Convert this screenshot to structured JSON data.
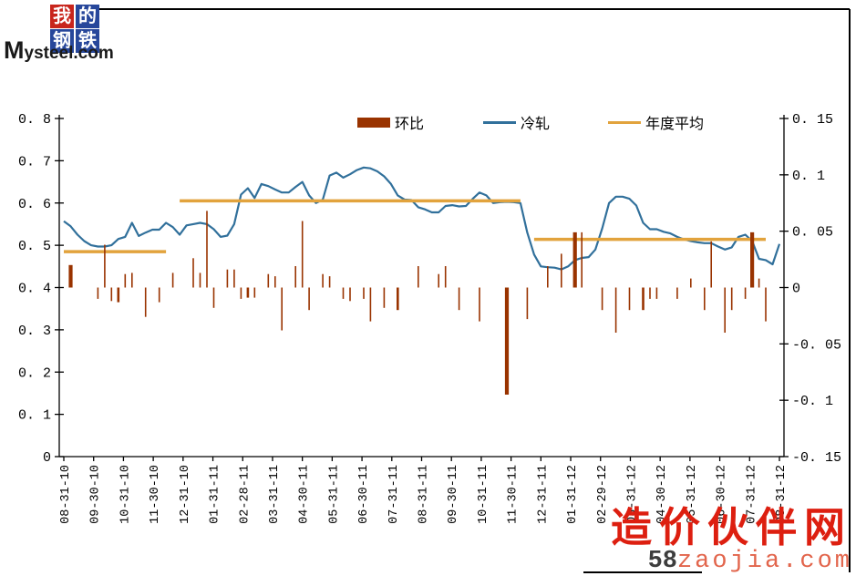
{
  "logo": {
    "blocks": [
      {
        "char": "我",
        "bg": "#c8251c"
      },
      {
        "char": "的",
        "bg": "#27479b"
      },
      {
        "char": "钢",
        "bg": "#27479b"
      },
      {
        "char": "铁",
        "bg": "#27479b"
      }
    ],
    "brand": "Mysteel.com"
  },
  "legend": [
    {
      "label": "环比",
      "type": "bar",
      "color": "#993300"
    },
    {
      "label": "冷轧",
      "type": "line",
      "color": "#31709b"
    },
    {
      "label": "年度平均",
      "type": "line",
      "color": "#e2a33d"
    }
  ],
  "watermark": {
    "title": "造价伙伴网",
    "site_prefix": "58",
    "site_suffix": "zaojia.com"
  },
  "chart_data": {
    "type": "combo",
    "title": "",
    "frequency": "weekly",
    "x_axis": {
      "start": "08-31-10",
      "end": "08-31-12",
      "tick_labels": [
        "08-31-10",
        "09-30-10",
        "10-31-10",
        "11-30-10",
        "12-31-10",
        "01-31-11",
        "02-28-11",
        "03-31-11",
        "04-30-11",
        "05-31-11",
        "06-30-11",
        "07-31-11",
        "08-31-11",
        "09-30-11",
        "10-31-11",
        "11-30-11",
        "12-31-11",
        "01-31-12",
        "02-29-12",
        "03-31-12",
        "04-30-12",
        "05-31-12",
        "06-30-12",
        "07-31-12",
        "08-31-12"
      ]
    },
    "left_axis": {
      "min": 0,
      "max": 0.8,
      "step": 0.1,
      "tick_labels": [
        "0",
        "0. 1",
        "0. 2",
        "0. 3",
        "0. 4",
        "0. 5",
        "0. 6",
        "0. 7",
        "0. 8"
      ]
    },
    "right_axis": {
      "min": -0.15,
      "max": 0.15,
      "step": 0.05,
      "tick_labels": [
        "-0. 15",
        "-0. 1",
        "-0. 05",
        "0",
        "0. 05",
        "0. 1",
        "0. 15"
      ]
    },
    "series": [
      {
        "name": "冷轧",
        "type": "line",
        "axis": "left",
        "color": "#31709b",
        "values": [
          0.557,
          0.545,
          0.525,
          0.51,
          0.5,
          0.497,
          0.497,
          0.5,
          0.515,
          0.52,
          0.553,
          0.522,
          0.53,
          0.537,
          0.537,
          0.553,
          0.543,
          0.525,
          0.547,
          0.55,
          0.553,
          0.55,
          0.538,
          0.52,
          0.523,
          0.55,
          0.62,
          0.635,
          0.612,
          0.645,
          0.64,
          0.632,
          0.625,
          0.625,
          0.638,
          0.65,
          0.618,
          0.6,
          0.608,
          0.665,
          0.672,
          0.66,
          0.668,
          0.678,
          0.684,
          0.682,
          0.675,
          0.663,
          0.645,
          0.618,
          0.608,
          0.607,
          0.59,
          0.585,
          0.578,
          0.578,
          0.593,
          0.595,
          0.592,
          0.593,
          0.61,
          0.625,
          0.618,
          0.6,
          0.602,
          0.603,
          0.602,
          0.6,
          0.53,
          0.478,
          0.45,
          0.448,
          0.447,
          0.443,
          0.45,
          0.465,
          0.47,
          0.472,
          0.49,
          0.54,
          0.6,
          0.615,
          0.615,
          0.61,
          0.594,
          0.553,
          0.538,
          0.538,
          0.532,
          0.528,
          0.52,
          0.514,
          0.51,
          0.507,
          0.505,
          0.505,
          0.497,
          0.49,
          0.495,
          0.52,
          0.525,
          0.51,
          0.468,
          0.465,
          0.455,
          0.503
        ]
      },
      {
        "name": "环比",
        "type": "bar",
        "axis": "right",
        "color": "#993300",
        "points": [
          [
            1,
            0.02,
            3
          ],
          [
            5,
            -0.01,
            1
          ],
          [
            6,
            0.038,
            1
          ],
          [
            7,
            -0.012,
            1
          ],
          [
            8,
            -0.013,
            2
          ],
          [
            9,
            0.012,
            1
          ],
          [
            10,
            0.013,
            1
          ],
          [
            12,
            -0.026,
            1
          ],
          [
            14,
            -0.013,
            1
          ],
          [
            16,
            0.013,
            1
          ],
          [
            19,
            0.026,
            1
          ],
          [
            20,
            0.013,
            1
          ],
          [
            21,
            0.068,
            1
          ],
          [
            22,
            -0.018,
            1
          ],
          [
            24,
            0.016,
            1
          ],
          [
            25,
            0.016,
            1
          ],
          [
            26,
            -0.01,
            1
          ],
          [
            27,
            -0.009,
            2
          ],
          [
            28,
            -0.009,
            1
          ],
          [
            30,
            0.012,
            1
          ],
          [
            31,
            0.01,
            1
          ],
          [
            32,
            -0.038,
            1
          ],
          [
            34,
            0.019,
            1
          ],
          [
            35,
            0.059,
            1
          ],
          [
            36,
            -0.02,
            1
          ],
          [
            38,
            0.012,
            1
          ],
          [
            39,
            0.01,
            1
          ],
          [
            41,
            -0.01,
            1
          ],
          [
            42,
            -0.012,
            1
          ],
          [
            44,
            -0.01,
            1
          ],
          [
            45,
            -0.03,
            1
          ],
          [
            47,
            -0.018,
            1
          ],
          [
            49,
            -0.02,
            2
          ],
          [
            52,
            0.019,
            1
          ],
          [
            55,
            0.012,
            1
          ],
          [
            56,
            0.019,
            1
          ],
          [
            58,
            -0.02,
            1
          ],
          [
            61,
            -0.03,
            1
          ],
          [
            65,
            -0.095,
            3
          ],
          [
            68,
            -0.028,
            1
          ],
          [
            71,
            0.019,
            1
          ],
          [
            73,
            0.03,
            1
          ],
          [
            75,
            0.049,
            3
          ],
          [
            76,
            0.049,
            1
          ],
          [
            79,
            -0.02,
            1
          ],
          [
            81,
            -0.04,
            1
          ],
          [
            83,
            -0.02,
            1
          ],
          [
            85,
            -0.02,
            2
          ],
          [
            86,
            -0.01,
            1
          ],
          [
            87,
            -0.01,
            1
          ],
          [
            90,
            -0.01,
            1
          ],
          [
            92,
            0.008,
            1
          ],
          [
            94,
            -0.02,
            1
          ],
          [
            95,
            0.041,
            1
          ],
          [
            97,
            -0.04,
            1
          ],
          [
            98,
            -0.02,
            1
          ],
          [
            100,
            -0.01,
            1
          ],
          [
            101,
            0.049,
            3
          ],
          [
            102,
            0.008,
            1
          ],
          [
            103,
            -0.03,
            1
          ]
        ]
      },
      {
        "name": "年度平均",
        "type": "segments",
        "axis": "left",
        "color": "#e2a33d",
        "segments": [
          {
            "year": "2010",
            "value": 0.485,
            "from_week": 0,
            "to_week": 15
          },
          {
            "year": "2011",
            "value": 0.605,
            "from_week": 17,
            "to_week": 67
          },
          {
            "year": "2012",
            "value": 0.514,
            "from_week": 69,
            "to_week": 103
          }
        ]
      }
    ]
  }
}
